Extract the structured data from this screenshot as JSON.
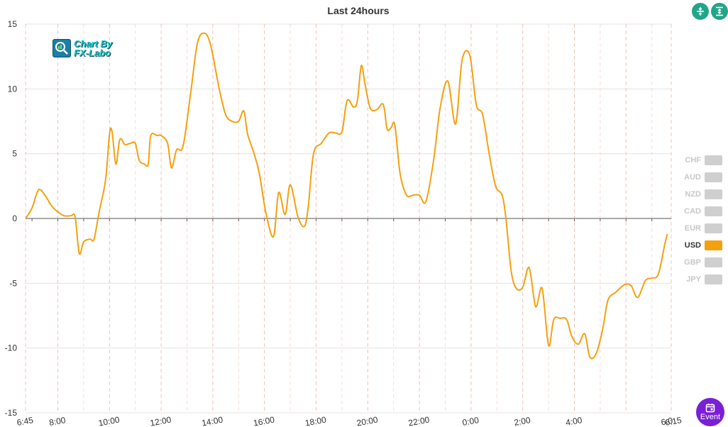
{
  "chart_data": {
    "type": "line",
    "title": "Last 24hours",
    "ylim": [
      -15,
      15
    ],
    "y_ticks": [
      "15",
      "10",
      "5",
      "0",
      "-5",
      "-10",
      "-15"
    ],
    "x_tick_labels": [
      "6:45",
      "8:00",
      "10:00",
      "12:00",
      "14:00",
      "16:00",
      "18:00",
      "20:00",
      "22:00",
      "0:00",
      "2:00",
      "4:00",
      "6:0",
      "6:15"
    ],
    "grid": true,
    "legend_position": "right",
    "series": [
      {
        "name": "USD",
        "color": "#f5a00f",
        "points": [
          [
            6.75,
            0.0
          ],
          [
            7.0,
            0.8
          ],
          [
            7.25,
            2.2
          ],
          [
            7.5,
            1.8
          ],
          [
            7.75,
            1.0
          ],
          [
            8.0,
            0.5
          ],
          [
            8.25,
            0.2
          ],
          [
            8.5,
            0.2
          ],
          [
            8.67,
            0.1
          ],
          [
            8.83,
            -2.7
          ],
          [
            9.0,
            -1.8
          ],
          [
            9.25,
            -1.6
          ],
          [
            9.4,
            -1.6
          ],
          [
            9.6,
            0.5
          ],
          [
            9.85,
            3.0
          ],
          [
            10.0,
            6.5
          ],
          [
            10.1,
            6.7
          ],
          [
            10.25,
            4.2
          ],
          [
            10.4,
            6.1
          ],
          [
            10.6,
            5.7
          ],
          [
            10.8,
            5.8
          ],
          [
            11.0,
            5.8
          ],
          [
            11.15,
            4.5
          ],
          [
            11.35,
            4.2
          ],
          [
            11.5,
            4.2
          ],
          [
            11.6,
            6.4
          ],
          [
            11.85,
            6.4
          ],
          [
            12.0,
            6.4
          ],
          [
            12.25,
            5.8
          ],
          [
            12.4,
            3.9
          ],
          [
            12.6,
            5.3
          ],
          [
            12.85,
            5.6
          ],
          [
            13.15,
            9.8
          ],
          [
            13.4,
            13.5
          ],
          [
            13.65,
            14.3
          ],
          [
            13.9,
            13.5
          ],
          [
            14.25,
            10.0
          ],
          [
            14.5,
            8.0
          ],
          [
            14.75,
            7.5
          ],
          [
            15.0,
            7.5
          ],
          [
            15.2,
            8.3
          ],
          [
            15.35,
            6.5
          ],
          [
            15.6,
            5.0
          ],
          [
            15.8,
            3.5
          ],
          [
            16.05,
            0.5
          ],
          [
            16.35,
            -1.4
          ],
          [
            16.55,
            2.0
          ],
          [
            16.8,
            0.3
          ],
          [
            17.0,
            2.6
          ],
          [
            17.3,
            0.1
          ],
          [
            17.55,
            -0.6
          ],
          [
            17.7,
            1.0
          ],
          [
            17.9,
            5.0
          ],
          [
            18.2,
            5.8
          ],
          [
            18.5,
            6.6
          ],
          [
            18.75,
            6.6
          ],
          [
            19.0,
            6.7
          ],
          [
            19.2,
            9.1
          ],
          [
            19.45,
            8.6
          ],
          [
            19.6,
            9.1
          ],
          [
            19.75,
            11.8
          ],
          [
            19.9,
            10.3
          ],
          [
            20.1,
            8.5
          ],
          [
            20.35,
            8.4
          ],
          [
            20.6,
            8.8
          ],
          [
            20.75,
            6.9
          ],
          [
            20.9,
            7.0
          ],
          [
            21.05,
            7.2
          ],
          [
            21.25,
            3.5
          ],
          [
            21.5,
            1.8
          ],
          [
            21.75,
            1.8
          ],
          [
            22.0,
            1.8
          ],
          [
            22.25,
            1.3
          ],
          [
            22.55,
            4.5
          ],
          [
            22.8,
            8.5
          ],
          [
            23.1,
            10.6
          ],
          [
            23.4,
            7.3
          ],
          [
            23.65,
            12.2
          ],
          [
            23.95,
            12.6
          ],
          [
            24.2,
            8.8
          ],
          [
            24.45,
            8.0
          ],
          [
            24.7,
            5.0
          ],
          [
            24.95,
            2.5
          ],
          [
            25.2,
            1.8
          ],
          [
            25.35,
            0.0
          ],
          [
            25.55,
            -4.0
          ],
          [
            25.75,
            -5.4
          ],
          [
            26.0,
            -5.3
          ],
          [
            26.25,
            -3.8
          ],
          [
            26.5,
            -6.8
          ],
          [
            26.75,
            -5.4
          ],
          [
            27.0,
            -9.8
          ],
          [
            27.2,
            -7.8
          ],
          [
            27.45,
            -7.7
          ],
          [
            27.7,
            -7.8
          ],
          [
            27.9,
            -9.1
          ],
          [
            28.15,
            -9.7
          ],
          [
            28.4,
            -8.9
          ],
          [
            28.6,
            -10.7
          ],
          [
            28.85,
            -10.4
          ],
          [
            29.1,
            -8.5
          ],
          [
            29.3,
            -6.3
          ],
          [
            29.6,
            -5.7
          ],
          [
            29.95,
            -5.1
          ],
          [
            30.2,
            -5.2
          ],
          [
            30.45,
            -6.1
          ],
          [
            30.75,
            -4.8
          ],
          [
            31.0,
            -4.6
          ],
          [
            31.25,
            -4.3
          ],
          [
            31.5,
            -2.0
          ],
          [
            31.6,
            -1.2
          ]
        ]
      }
    ]
  },
  "legend": [
    {
      "label": "CHF",
      "active": false
    },
    {
      "label": "AUD",
      "active": false
    },
    {
      "label": "NZD",
      "active": false
    },
    {
      "label": "CAD",
      "active": false
    },
    {
      "label": "EUR",
      "active": false
    },
    {
      "label": "USD",
      "active": true,
      "color": "#f5a00f"
    },
    {
      "label": "GBP",
      "active": false
    },
    {
      "label": "JPY",
      "active": false
    }
  ],
  "watermark": {
    "line1": "Chart By",
    "line2": "FX-Labo"
  },
  "buttons": {
    "event_label": "Event"
  },
  "colors": {
    "grid": "#e3e3e3",
    "vgrid": "#f4c0b0",
    "axis": "#555555",
    "inactive": "#cfcfcf",
    "event": "#7b1fd6",
    "toolbar": "#21a58a"
  }
}
